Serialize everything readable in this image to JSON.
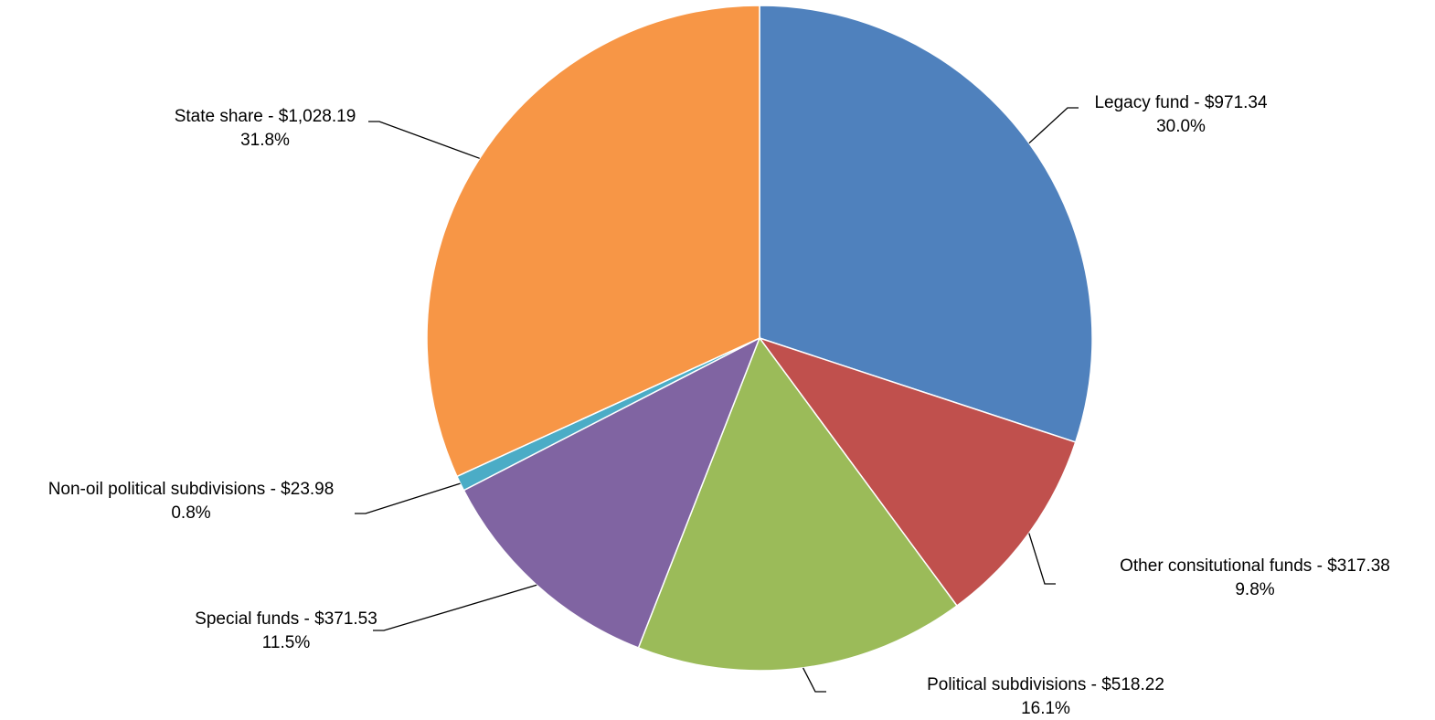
{
  "chart_data": {
    "type": "pie",
    "title": "",
    "start": "top",
    "direction": "clockwise",
    "slices": [
      {
        "label": "Legacy fund - $971.34",
        "value": 971.34,
        "pct_label": "30.0%",
        "color": "#4F81BD"
      },
      {
        "label": "Other consitutional funds - $317.38",
        "value": 317.38,
        "pct_label": "9.8%",
        "color": "#C0504D"
      },
      {
        "label": "Political subdivisions - $518.22",
        "value": 518.22,
        "pct_label": "16.1%",
        "color": "#9BBB59"
      },
      {
        "label": "Special funds - $371.53",
        "value": 371.53,
        "pct_label": "11.5%",
        "color": "#8064A2"
      },
      {
        "label": "Non-oil political subdivisions - $23.98",
        "value": 23.98,
        "pct_label": "0.8%",
        "color": "#4BACC6"
      },
      {
        "label": "State share - $1,028.19",
        "value": 1028.19,
        "pct_label": "31.8%",
        "color": "#F79646"
      }
    ]
  }
}
